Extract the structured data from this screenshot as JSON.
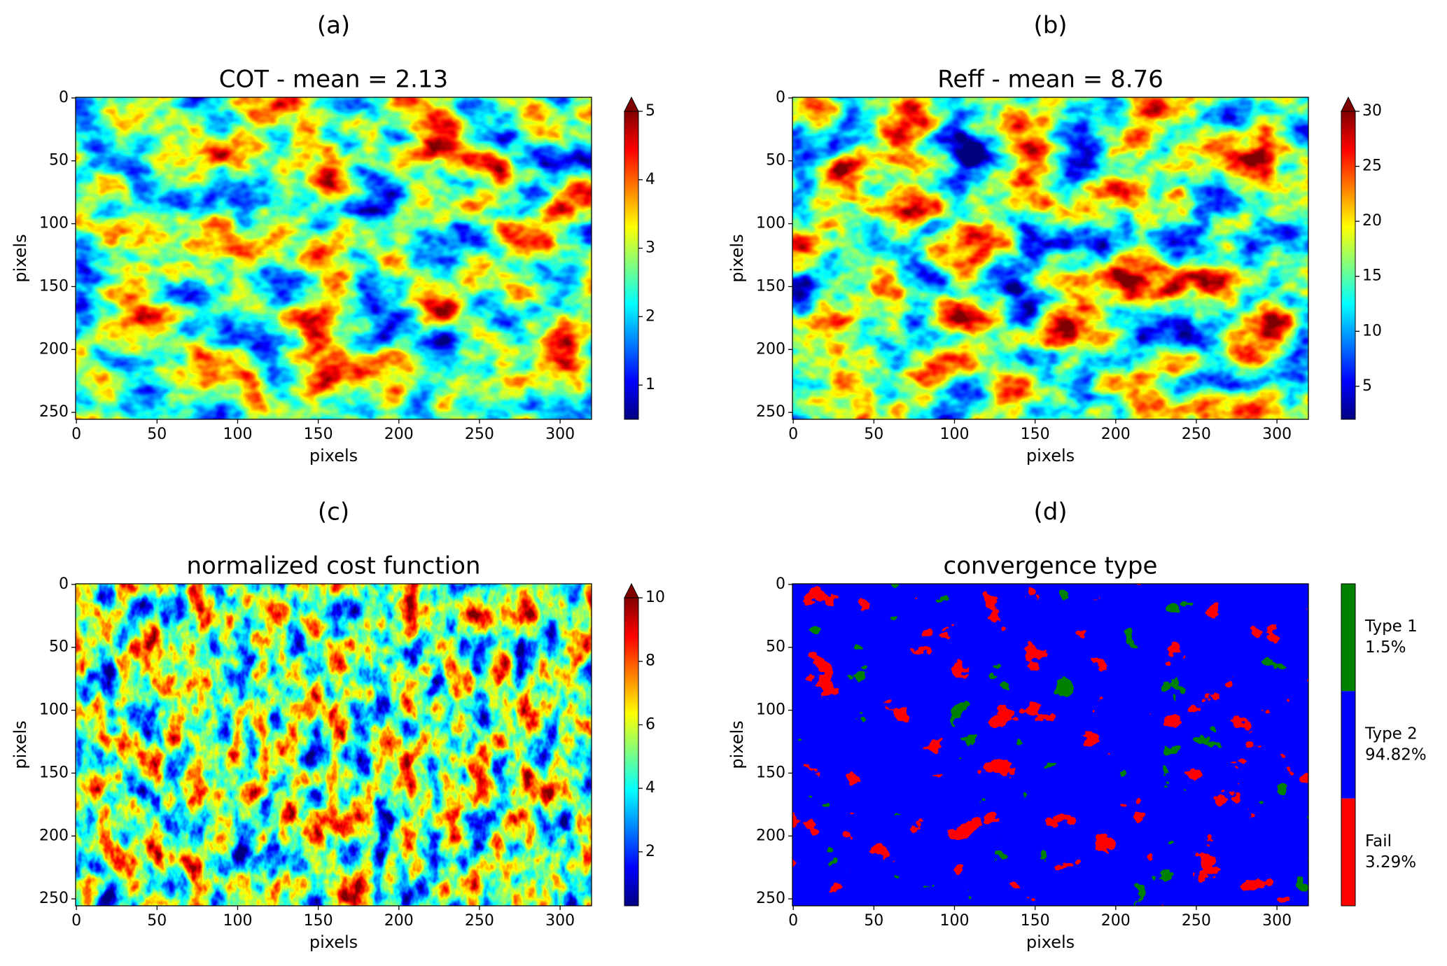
{
  "chart_data": [
    {
      "type": "heatmap",
      "panel_label": "(a)",
      "title": "COT - mean = 2.13",
      "xlabel": "pixels",
      "ylabel": "pixels",
      "xlim": [
        -0.5,
        319.5
      ],
      "ylim": [
        255.5,
        -0.5
      ],
      "xticks": [
        0,
        50,
        100,
        150,
        200,
        250,
        300
      ],
      "yticks": [
        0,
        50,
        100,
        150,
        200,
        250
      ],
      "colormap": "jet",
      "vlim": [
        0.5,
        5
      ],
      "cticks": [
        1,
        2,
        3,
        4,
        5
      ],
      "extend": "max"
    },
    {
      "type": "heatmap",
      "panel_label": "(b)",
      "title": "Reff - mean = 8.76",
      "xlabel": "pixels",
      "ylabel": "pixels",
      "xlim": [
        -0.5,
        319.5
      ],
      "ylim": [
        255.5,
        -0.5
      ],
      "xticks": [
        0,
        50,
        100,
        150,
        200,
        250,
        300
      ],
      "yticks": [
        0,
        50,
        100,
        150,
        200,
        250
      ],
      "colormap": "jet",
      "vlim": [
        2,
        30
      ],
      "cticks": [
        5,
        10,
        15,
        20,
        25,
        30
      ],
      "extend": "max"
    },
    {
      "type": "heatmap",
      "panel_label": "(c)",
      "title": "normalized cost function",
      "xlabel": "pixels",
      "ylabel": "pixels",
      "xlim": [
        -0.5,
        319.5
      ],
      "ylim": [
        255.5,
        -0.5
      ],
      "xticks": [
        0,
        50,
        100,
        150,
        200,
        250,
        300
      ],
      "yticks": [
        0,
        50,
        100,
        150,
        200,
        250
      ],
      "colormap": "jet",
      "vlim": [
        0.3,
        10
      ],
      "cticks": [
        2,
        4,
        6,
        8,
        10
      ],
      "extend": "max"
    },
    {
      "type": "categorical_map",
      "panel_label": "(d)",
      "title": "convergence type",
      "xlabel": "pixels",
      "ylabel": "pixels",
      "xlim": [
        -0.5,
        319.5
      ],
      "ylim": [
        255.5,
        -0.5
      ],
      "xticks": [
        0,
        50,
        100,
        150,
        200,
        250,
        300
      ],
      "yticks": [
        0,
        50,
        100,
        150,
        200,
        250
      ],
      "colormap": "categories",
      "categories": [
        "Type 1",
        "Type 2",
        "Fail"
      ],
      "values": [
        1.5,
        94.82,
        3.29
      ],
      "value_labels": [
        "1.5%",
        "94.82%",
        "3.29%"
      ],
      "colors": [
        "#008000",
        "#0000ff",
        "#ff0000"
      ]
    }
  ]
}
